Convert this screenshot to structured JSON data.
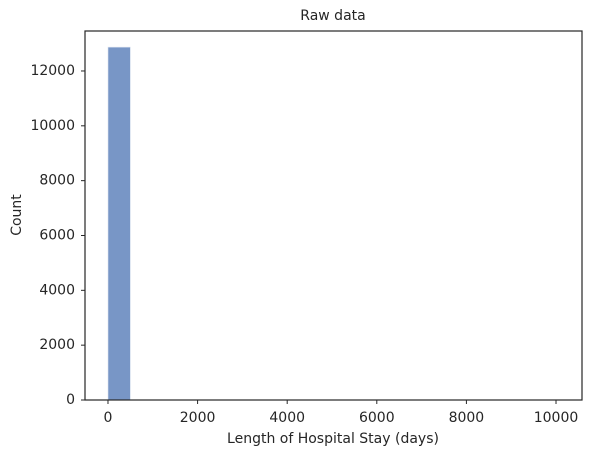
{
  "chart_data": {
    "type": "histogram",
    "title": "Raw data",
    "x_label": "Length of Hospital Stay (days)",
    "y_label": "Count",
    "bins": [
      0,
      500,
      1000,
      1500,
      2000,
      2500,
      3000,
      3500,
      4000,
      4500,
      5000,
      5500,
      6000,
      6500,
      7000,
      7500,
      8000,
      8500,
      9000,
      9500,
      10000
    ],
    "values": [
      12870,
      0,
      0,
      0,
      0,
      0,
      0,
      0,
      0,
      0,
      0,
      0,
      0,
      0,
      0,
      0,
      0,
      0,
      0,
      1
    ],
    "color": "#7896c6",
    "xlim": [
      -513,
      10580
    ],
    "xticks": [
      0,
      2000,
      4000,
      6000,
      8000,
      10000
    ],
    "ylim": [
      0,
      13458
    ],
    "yticks": [
      0,
      2000,
      4000,
      6000,
      8000,
      10000,
      12000
    ],
    "grid": false
  }
}
